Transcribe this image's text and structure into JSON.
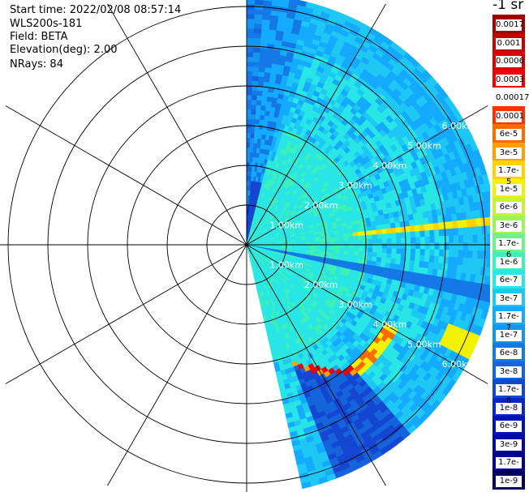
{
  "header": {
    "start_time": "Start time: 2022/02/08 08:57:14",
    "instrument": "WLS200s-181",
    "field": "Field: BETA",
    "elevation": "Elevation(deg): 2.00",
    "nrays": "NRays: 84"
  },
  "colorbar": {
    "unit": "-1 sr",
    "labels": [
      "0.0017",
      "0.001",
      "0.0006",
      "0.0003",
      "0.00017",
      "0.0001",
      "6e-5",
      "3e-5",
      "1.7e-5",
      "1e-5",
      "6e-6",
      "3e-6",
      "1.7e-6",
      "1e-6",
      "6e-7",
      "3e-7",
      "1.7e-7",
      "1e-7",
      "6e-8",
      "3e-8",
      "1.7e-8",
      "1e-8",
      "6e-9",
      "3e-9",
      "1.7e-9",
      "1e-9"
    ],
    "colors": [
      "#a00000",
      "#c40000",
      "#dd0000",
      "#f00000",
      "#ffffff",
      "#ff3000",
      "#ff6a00",
      "#ffa000",
      "#ffd200",
      "#f2f200",
      "#c8f232",
      "#9cf55a",
      "#6cf48c",
      "#3cf0b8",
      "#28e6e6",
      "#1ec8f5",
      "#14aaff",
      "#1496f0",
      "#1478e6",
      "#1464dc",
      "#1446d2",
      "#0a28c8",
      "#0014b4",
      "#000aa0",
      "#00008c",
      "#00005a"
    ]
  },
  "chart_data": {
    "type": "heatmap",
    "subtype": "polar-ppi",
    "rings_km": [
      1,
      2,
      3,
      4,
      5,
      6
    ],
    "ring_labels": [
      "1.00km",
      "2.00km",
      "3.00km",
      "4.00km",
      "5.00km",
      "6.00km"
    ],
    "spokes_deg": [
      0,
      30,
      60,
      90,
      120,
      150,
      180,
      210,
      240,
      270,
      300,
      330
    ],
    "scan_sector_deg": [
      0,
      167
    ],
    "nrays": 84
  }
}
